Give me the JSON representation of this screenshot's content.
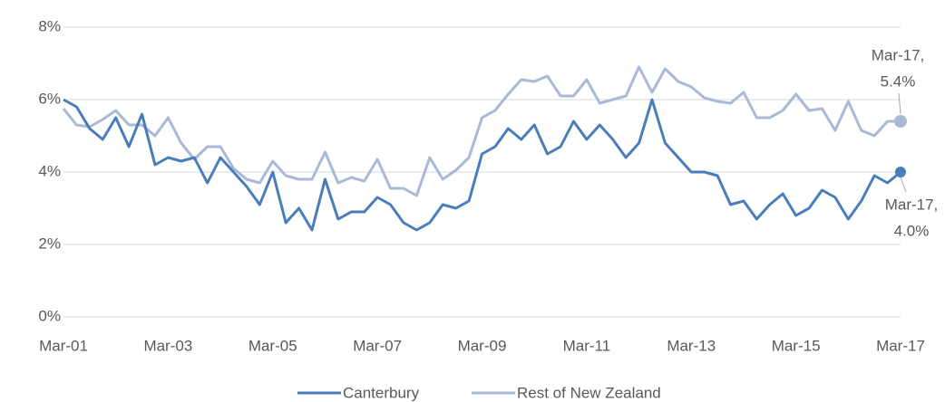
{
  "chart_data": {
    "type": "line",
    "categories": [
      "Mar-01",
      null,
      null,
      null,
      null,
      null,
      null,
      null,
      "Mar-03",
      null,
      null,
      null,
      null,
      null,
      null,
      null,
      "Mar-05",
      null,
      null,
      null,
      null,
      null,
      null,
      null,
      "Mar-07",
      null,
      null,
      null,
      null,
      null,
      null,
      null,
      "Mar-09",
      null,
      null,
      null,
      null,
      null,
      null,
      null,
      "Mar-11",
      null,
      null,
      null,
      null,
      null,
      null,
      null,
      "Mar-13",
      null,
      null,
      null,
      null,
      null,
      null,
      null,
      "Mar-15",
      null,
      null,
      null,
      null,
      null,
      null,
      null,
      "Mar-17"
    ],
    "series": [
      {
        "name": "Canterbury",
        "color": "#4a7ebb",
        "values": [
          6.0,
          5.8,
          5.2,
          4.9,
          5.5,
          4.7,
          5.6,
          4.2,
          4.4,
          4.3,
          4.4,
          3.7,
          4.4,
          4.0,
          3.6,
          3.1,
          4.0,
          2.6,
          3.0,
          2.4,
          3.8,
          2.7,
          2.9,
          2.9,
          3.3,
          3.1,
          2.6,
          2.4,
          2.6,
          3.1,
          3.0,
          3.2,
          4.5,
          4.7,
          5.2,
          4.9,
          5.3,
          4.5,
          4.7,
          5.4,
          4.9,
          5.3,
          4.9,
          4.4,
          4.8,
          6.0,
          4.8,
          4.4,
          4.0,
          4.0,
          3.9,
          3.1,
          3.2,
          2.7,
          3.1,
          3.4,
          2.8,
          3.0,
          3.5,
          3.3,
          2.7,
          3.2,
          3.9,
          3.7,
          4.0
        ]
      },
      {
        "name": "Rest of New Zealand",
        "color": "#a9b9d6",
        "values": [
          5.75,
          5.3,
          5.25,
          5.45,
          5.7,
          5.3,
          5.3,
          5.0,
          5.5,
          4.8,
          4.35,
          4.7,
          4.7,
          4.1,
          3.8,
          3.7,
          4.3,
          3.9,
          3.8,
          3.8,
          4.55,
          3.7,
          3.85,
          3.75,
          4.35,
          3.55,
          3.55,
          3.35,
          4.4,
          3.8,
          4.05,
          4.4,
          5.5,
          5.7,
          6.15,
          6.55,
          6.5,
          6.65,
          6.1,
          6.1,
          6.55,
          5.9,
          6.0,
          6.1,
          6.9,
          6.2,
          6.85,
          6.5,
          6.35,
          6.05,
          5.95,
          5.9,
          6.2,
          5.5,
          5.5,
          5.7,
          6.15,
          5.7,
          5.75,
          5.15,
          5.95,
          5.15,
          5.0,
          5.4,
          5.4
        ]
      }
    ],
    "ylim": [
      0,
      8
    ],
    "yticks": [
      {
        "value": 0,
        "label": "0%"
      },
      {
        "value": 2,
        "label": "2%"
      },
      {
        "value": 4,
        "label": "4%"
      },
      {
        "value": 6,
        "label": "6%"
      },
      {
        "value": 8,
        "label": "8%"
      }
    ],
    "grid": true,
    "legend": "bottom",
    "annotations": [
      {
        "series": 1,
        "lines": [
          "Mar-17,",
          "5.4%"
        ],
        "position": "above"
      },
      {
        "series": 0,
        "lines": [
          "Mar-17,",
          "4.0%"
        ],
        "position": "below"
      }
    ]
  }
}
